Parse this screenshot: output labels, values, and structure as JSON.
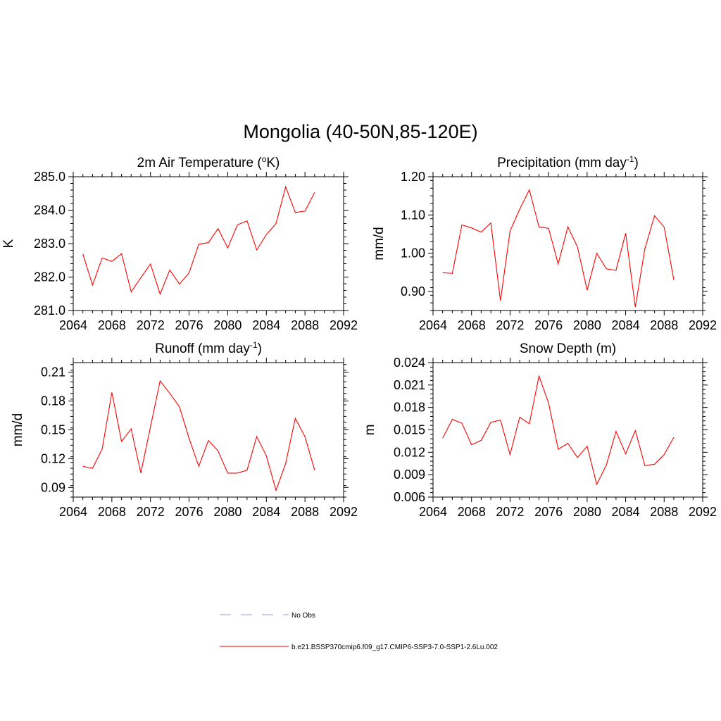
{
  "figure_title": "Mongolia (40-50N,85-120E)",
  "legend": [
    {
      "label": "No Obs",
      "color": "#9999dd",
      "dashed": true
    },
    {
      "label": "b.e21.BSSP370cmip6.f09_g17.CMIP6-SSP3-7.0-SSP1-2.6Lu.002",
      "color": "#ff0000",
      "dashed": false
    }
  ],
  "chart_data": [
    {
      "type": "line",
      "title_main": "2m Air Temperature (",
      "title_sup": "o",
      "title_tail": "K)",
      "ylabel": "K",
      "xlim": [
        2064,
        2092
      ],
      "ylim": [
        281.0,
        285.0
      ],
      "xticks": [
        "2064",
        "2068",
        "2072",
        "2076",
        "2080",
        "2084",
        "2088",
        "2092"
      ],
      "yticks": [
        "281.0",
        "282.0",
        "283.0",
        "284.0",
        "285.0"
      ],
      "series": [
        {
          "color": "#ff0000",
          "x": [
            2065,
            2066,
            2067,
            2068,
            2069,
            2070,
            2071,
            2072,
            2073,
            2074,
            2075,
            2076,
            2077,
            2078,
            2079,
            2080,
            2081,
            2082,
            2083,
            2084,
            2085,
            2086,
            2087,
            2088,
            2089
          ],
          "y": [
            282.69,
            281.76,
            282.57,
            282.47,
            282.7,
            281.56,
            281.98,
            282.39,
            281.49,
            282.21,
            281.79,
            282.13,
            282.98,
            283.03,
            283.45,
            282.87,
            283.56,
            283.68,
            282.81,
            283.27,
            283.6,
            284.7,
            283.93,
            283.97,
            284.53
          ]
        }
      ]
    },
    {
      "type": "line",
      "title_main": "Precipitation (mm day",
      "title_sup": "-1",
      "title_tail": ")",
      "ylabel": "mm/d",
      "xlim": [
        2064,
        2092
      ],
      "ylim": [
        0.85,
        1.2
      ],
      "xticks": [
        "2064",
        "2068",
        "2072",
        "2076",
        "2080",
        "2084",
        "2088",
        "2092"
      ],
      "yticks": [
        "0.90",
        "1.00",
        "1.10",
        "1.20"
      ],
      "series": [
        {
          "color": "#ff0000",
          "x": [
            2065,
            2066,
            2067,
            2068,
            2069,
            2070,
            2071,
            2072,
            2073,
            2074,
            2075,
            2076,
            2077,
            2078,
            2079,
            2080,
            2081,
            2082,
            2083,
            2084,
            2085,
            2086,
            2087,
            2088,
            2089
          ],
          "y": [
            0.949,
            0.947,
            1.074,
            1.066,
            1.055,
            1.079,
            0.876,
            1.058,
            1.115,
            1.166,
            1.069,
            1.065,
            0.972,
            1.069,
            1.016,
            0.903,
            1.0,
            0.959,
            0.955,
            1.052,
            0.859,
            1.012,
            1.098,
            1.068,
            0.93
          ]
        }
      ]
    },
    {
      "type": "line",
      "title_main": "Runoff (mm day",
      "title_sup": "-1",
      "title_tail": ")",
      "ylabel": "mm/d",
      "xlim": [
        2064,
        2092
      ],
      "ylim": [
        0.08,
        0.22
      ],
      "xticks": [
        "2064",
        "2068",
        "2072",
        "2076",
        "2080",
        "2084",
        "2088",
        "2092"
      ],
      "yticks": [
        "0.09",
        "0.12",
        "0.15",
        "0.18",
        "0.21"
      ],
      "series": [
        {
          "color": "#ff0000",
          "x": [
            2065,
            2066,
            2067,
            2068,
            2069,
            2070,
            2071,
            2072,
            2073,
            2074,
            2075,
            2076,
            2077,
            2078,
            2079,
            2080,
            2081,
            2082,
            2083,
            2084,
            2085,
            2086,
            2087,
            2088,
            2089
          ],
          "y": [
            0.112,
            0.11,
            0.13,
            0.189,
            0.138,
            0.151,
            0.105,
            0.153,
            0.201,
            0.188,
            0.174,
            0.141,
            0.112,
            0.139,
            0.128,
            0.105,
            0.105,
            0.108,
            0.143,
            0.123,
            0.087,
            0.115,
            0.162,
            0.143,
            0.108
          ]
        }
      ]
    },
    {
      "type": "line",
      "title_main": "Snow Depth (m)",
      "title_sup": "",
      "title_tail": "",
      "ylabel": "m",
      "xlim": [
        2064,
        2092
      ],
      "ylim": [
        0.006,
        0.024
      ],
      "xticks": [
        "2064",
        "2068",
        "2072",
        "2076",
        "2080",
        "2084",
        "2088",
        "2092"
      ],
      "yticks": [
        "0.006",
        "0.009",
        "0.012",
        "0.015",
        "0.018",
        "0.021",
        "0.024"
      ],
      "series": [
        {
          "color": "#ff0000",
          "x": [
            2065,
            2066,
            2067,
            2068,
            2069,
            2070,
            2071,
            2072,
            2073,
            2074,
            2075,
            2076,
            2077,
            2078,
            2079,
            2080,
            2081,
            2082,
            2083,
            2084,
            2085,
            2086,
            2087,
            2088,
            2089
          ],
          "y": [
            0.0139,
            0.0164,
            0.0159,
            0.013,
            0.0136,
            0.016,
            0.0163,
            0.0117,
            0.0167,
            0.0158,
            0.0222,
            0.0186,
            0.0124,
            0.0132,
            0.0113,
            0.0128,
            0.0077,
            0.0103,
            0.0148,
            0.0118,
            0.0149,
            0.0102,
            0.0104,
            0.0117,
            0.014
          ]
        }
      ]
    }
  ]
}
